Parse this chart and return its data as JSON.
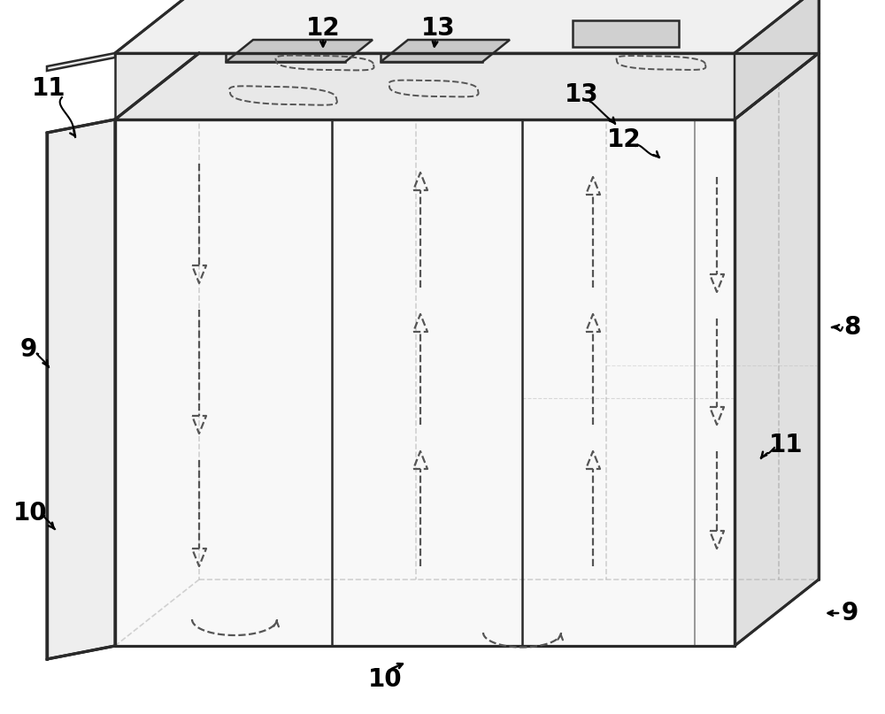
{
  "background_color": "#ffffff",
  "line_color": "#2a2a2a",
  "dashed_color": "#555555",
  "face_front": "#f8f8f8",
  "face_right": "#e0e0e0",
  "face_top": "#ececec",
  "face_door": "#efefef",
  "face_cap_front": "#e8e8e8",
  "face_cap_top": "#f0f0f0",
  "face_cap_right": "#d8d8d8",
  "face_notch": "#d0d0d0",
  "figsize": [
    10.0,
    8.07
  ],
  "dpi": 100,
  "label_fontsize": 20
}
